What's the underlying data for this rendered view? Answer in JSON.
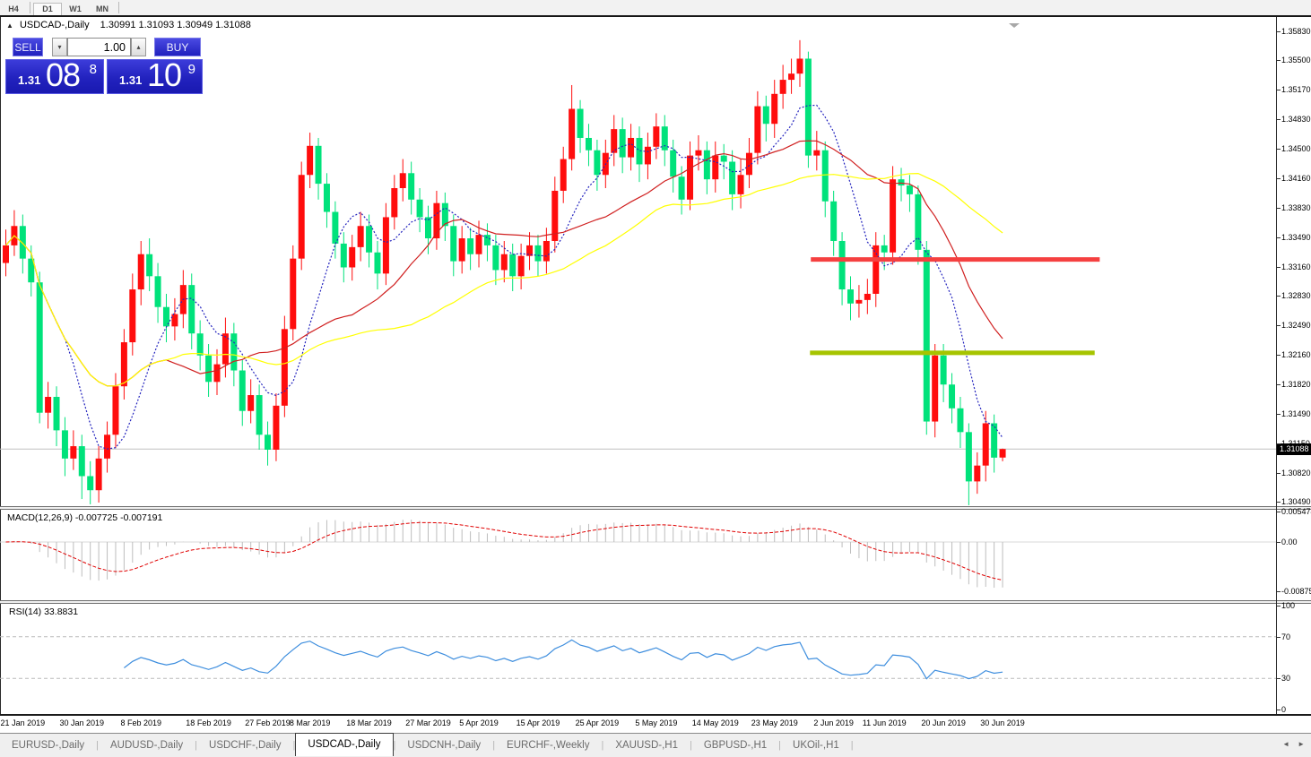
{
  "toolbar": {
    "timeframes": [
      {
        "label": "H4",
        "active": false
      },
      {
        "label": "D1",
        "active": true
      },
      {
        "label": "W1",
        "active": false
      },
      {
        "label": "MN",
        "active": false
      }
    ]
  },
  "chart": {
    "title_symbol": "USDCAD-,Daily",
    "title_ohlc": "1.30991 1.31093 1.30949 1.31088",
    "current_price": "1.31088",
    "trade_panel": {
      "sell_label": "SELL",
      "buy_label": "BUY",
      "volume": "1.00",
      "sell_price_small": "1.31",
      "sell_price_big": "08",
      "sell_price_sup": "8",
      "buy_price_small": "1.31",
      "buy_price_big": "10",
      "buy_price_sup": "9"
    }
  },
  "chart_data": {
    "type": "candlestick",
    "symbol": "USDCAD",
    "period": "Daily",
    "colors": {
      "bull": "#FF0D0D",
      "bear": "#00E27B",
      "macd_hist": "#BDBDBD",
      "macd_signal": "#E00000",
      "rsi_line": "#3E8EDE",
      "level_dash": "#BBBBBB",
      "current_line": "#C0C0C0",
      "zero_line": "#DADADA"
    },
    "candles": [
      [
        1.332,
        1.3358,
        1.3305,
        1.334
      ],
      [
        1.334,
        1.338,
        1.3328,
        1.3362
      ],
      [
        1.3362,
        1.3375,
        1.3308,
        1.3325
      ],
      [
        1.3325,
        1.334,
        1.3282,
        1.3298
      ],
      [
        1.3298,
        1.331,
        1.3138,
        1.315
      ],
      [
        1.315,
        1.3185,
        1.3132,
        1.3168
      ],
      [
        1.3168,
        1.318,
        1.3112,
        1.313
      ],
      [
        1.313,
        1.3145,
        1.3078,
        1.3098
      ],
      [
        1.3098,
        1.313,
        1.3085,
        1.3112
      ],
      [
        1.3112,
        1.3125,
        1.3052,
        1.3078
      ],
      [
        1.3078,
        1.3095,
        1.3046,
        1.3062
      ],
      [
        1.3062,
        1.3112,
        1.3048,
        1.3098
      ],
      [
        1.3098,
        1.314,
        1.3082,
        1.3125
      ],
      [
        1.3125,
        1.3195,
        1.311,
        1.318
      ],
      [
        1.318,
        1.3245,
        1.3165,
        1.323
      ],
      [
        1.323,
        1.3308,
        1.3215,
        1.329
      ],
      [
        1.329,
        1.3345,
        1.3272,
        1.333
      ],
      [
        1.333,
        1.3348,
        1.3288,
        1.3305
      ],
      [
        1.3305,
        1.332,
        1.3252,
        1.327
      ],
      [
        1.327,
        1.3285,
        1.323,
        1.3248
      ],
      [
        1.3248,
        1.328,
        1.3232,
        1.3262
      ],
      [
        1.3262,
        1.3312,
        1.3246,
        1.3295
      ],
      [
        1.3295,
        1.3308,
        1.3222,
        1.324
      ],
      [
        1.324,
        1.3255,
        1.3198,
        1.3215
      ],
      [
        1.3215,
        1.3228,
        1.3168,
        1.3185
      ],
      [
        1.3185,
        1.3222,
        1.317,
        1.3205
      ],
      [
        1.3205,
        1.3258,
        1.319,
        1.324
      ],
      [
        1.324,
        1.3252,
        1.318,
        1.3198
      ],
      [
        1.3198,
        1.321,
        1.3135,
        1.3152
      ],
      [
        1.3152,
        1.3188,
        1.3138,
        1.317
      ],
      [
        1.317,
        1.3182,
        1.3108,
        1.3125
      ],
      [
        1.3125,
        1.314,
        1.309,
        1.3108
      ],
      [
        1.3108,
        1.3172,
        1.3095,
        1.3158
      ],
      [
        1.3158,
        1.326,
        1.3145,
        1.3245
      ],
      [
        1.3245,
        1.334,
        1.3232,
        1.3325
      ],
      [
        1.3325,
        1.3435,
        1.3312,
        1.342
      ],
      [
        1.342,
        1.3468,
        1.3405,
        1.3453
      ],
      [
        1.3453,
        1.3462,
        1.3392,
        1.341
      ],
      [
        1.341,
        1.3422,
        1.336,
        1.3378
      ],
      [
        1.3378,
        1.339,
        1.3325,
        1.3342
      ],
      [
        1.3342,
        1.3355,
        1.3298,
        1.3315
      ],
      [
        1.3315,
        1.3352,
        1.33,
        1.3338
      ],
      [
        1.3338,
        1.3378,
        1.3322,
        1.3362
      ],
      [
        1.3362,
        1.3375,
        1.3315,
        1.3332
      ],
      [
        1.3332,
        1.3345,
        1.329,
        1.3308
      ],
      [
        1.3308,
        1.3388,
        1.3295,
        1.3372
      ],
      [
        1.3372,
        1.342,
        1.3358,
        1.3405
      ],
      [
        1.3405,
        1.3438,
        1.339,
        1.3422
      ],
      [
        1.3422,
        1.3435,
        1.3375,
        1.3392
      ],
      [
        1.3392,
        1.3405,
        1.3355,
        1.3372
      ],
      [
        1.3372,
        1.3385,
        1.333,
        1.3348
      ],
      [
        1.3348,
        1.3402,
        1.3335,
        1.3388
      ],
      [
        1.3388,
        1.34,
        1.3345,
        1.3362
      ],
      [
        1.3362,
        1.3375,
        1.3305,
        1.3322
      ],
      [
        1.3322,
        1.3362,
        1.3308,
        1.3348
      ],
      [
        1.3348,
        1.336,
        1.3312,
        1.333
      ],
      [
        1.333,
        1.3368,
        1.3315,
        1.3352
      ],
      [
        1.3352,
        1.3365,
        1.3322,
        1.334
      ],
      [
        1.334,
        1.3352,
        1.3295,
        1.3312
      ],
      [
        1.3312,
        1.3345,
        1.3298,
        1.333
      ],
      [
        1.333,
        1.3342,
        1.3288,
        1.3305
      ],
      [
        1.3305,
        1.3342,
        1.329,
        1.3328
      ],
      [
        1.3328,
        1.3355,
        1.3312,
        1.334
      ],
      [
        1.334,
        1.3352,
        1.3305,
        1.3322
      ],
      [
        1.3322,
        1.336,
        1.3308,
        1.3345
      ],
      [
        1.3345,
        1.3418,
        1.3332,
        1.3402
      ],
      [
        1.3402,
        1.3452,
        1.3388,
        1.3438
      ],
      [
        1.3438,
        1.3522,
        1.3425,
        1.3495
      ],
      [
        1.3495,
        1.3505,
        1.3445,
        1.3462
      ],
      [
        1.3462,
        1.3478,
        1.343,
        1.3448
      ],
      [
        1.3448,
        1.346,
        1.3402,
        1.342
      ],
      [
        1.342,
        1.346,
        1.3405,
        1.3445
      ],
      [
        1.3445,
        1.3488,
        1.343,
        1.3472
      ],
      [
        1.3472,
        1.3485,
        1.3422,
        1.344
      ],
      [
        1.344,
        1.3478,
        1.3425,
        1.3462
      ],
      [
        1.3462,
        1.3475,
        1.3412,
        1.3432
      ],
      [
        1.3432,
        1.3468,
        1.3415,
        1.3452
      ],
      [
        1.3452,
        1.349,
        1.3438,
        1.3475
      ],
      [
        1.3475,
        1.3488,
        1.343,
        1.3448
      ],
      [
        1.3448,
        1.346,
        1.34,
        1.3418
      ],
      [
        1.3418,
        1.343,
        1.3375,
        1.3392
      ],
      [
        1.3392,
        1.3458,
        1.338,
        1.3442
      ],
      [
        1.3442,
        1.3465,
        1.3425,
        1.3448
      ],
      [
        1.3448,
        1.3458,
        1.3398,
        1.3415
      ],
      [
        1.3415,
        1.3458,
        1.34,
        1.3442
      ],
      [
        1.3442,
        1.3455,
        1.3415,
        1.3435
      ],
      [
        1.3435,
        1.3448,
        1.338,
        1.3398
      ],
      [
        1.3398,
        1.3438,
        1.3382,
        1.342
      ],
      [
        1.342,
        1.3462,
        1.3405,
        1.3445
      ],
      [
        1.3445,
        1.3515,
        1.3432,
        1.3498
      ],
      [
        1.3498,
        1.351,
        1.3458,
        1.3478
      ],
      [
        1.3478,
        1.3528,
        1.3462,
        1.3512
      ],
      [
        1.3512,
        1.3545,
        1.3495,
        1.3528
      ],
      [
        1.3528,
        1.3552,
        1.3512,
        1.3535
      ],
      [
        1.3535,
        1.3573,
        1.352,
        1.3552
      ],
      [
        1.3552,
        1.356,
        1.3428,
        1.3442
      ],
      [
        1.3442,
        1.347,
        1.3425,
        1.3448
      ],
      [
        1.3448,
        1.3458,
        1.3372,
        1.339
      ],
      [
        1.339,
        1.3402,
        1.3328,
        1.3345
      ],
      [
        1.3345,
        1.3355,
        1.3272,
        1.329
      ],
      [
        1.329,
        1.3305,
        1.3255,
        1.3274
      ],
      [
        1.3274,
        1.3295,
        1.3258,
        1.3278
      ],
      [
        1.3278,
        1.3302,
        1.3262,
        1.3285
      ],
      [
        1.3285,
        1.3355,
        1.327,
        1.334
      ],
      [
        1.334,
        1.3352,
        1.3312,
        1.3332
      ],
      [
        1.3332,
        1.343,
        1.3318,
        1.3415
      ],
      [
        1.3415,
        1.3428,
        1.339,
        1.3408
      ],
      [
        1.3408,
        1.342,
        1.3378,
        1.3398
      ],
      [
        1.3398,
        1.3408,
        1.3318,
        1.3335
      ],
      [
        1.3335,
        1.3345,
        1.3125,
        1.314
      ],
      [
        1.314,
        1.3228,
        1.3122,
        1.3215
      ],
      [
        1.3215,
        1.3228,
        1.3162,
        1.3182
      ],
      [
        1.3182,
        1.3195,
        1.3138,
        1.3155
      ],
      [
        1.3155,
        1.3168,
        1.311,
        1.3128
      ],
      [
        1.3128,
        1.3138,
        1.3045,
        1.3072
      ],
      [
        1.3072,
        1.3105,
        1.3058,
        1.309
      ],
      [
        1.309,
        1.3152,
        1.3072,
        1.3138
      ],
      [
        1.3138,
        1.3148,
        1.3082,
        1.3099
      ],
      [
        1.30991,
        1.31093,
        1.30949,
        1.31088
      ]
    ],
    "ma_lines": [
      {
        "period": 8,
        "color": "#2424BE",
        "style": "dashed"
      },
      {
        "period": 20,
        "color": "#D02020",
        "style": "solid"
      },
      {
        "period": 45,
        "color": "#FFFF00",
        "style": "solid"
      }
    ],
    "hlines": [
      {
        "price": 1.3324,
        "color": "#F54040",
        "thickness": 5,
        "start_i": 95.3,
        "end_i": 129.5
      },
      {
        "price": 1.3218,
        "color": "#A6C400",
        "thickness": 5,
        "start_i": 95.2,
        "end_i": 128.9
      }
    ],
    "y_axis": {
      "max": 1.3583,
      "min": 1.3049,
      "ticks": [
        "1.35830",
        "1.35500",
        "1.35170",
        "1.34830",
        "1.34500",
        "1.34160",
        "1.33830",
        "1.33490",
        "1.33160",
        "1.32830",
        "1.32490",
        "1.32160",
        "1.31820",
        "1.31490",
        "1.31150",
        "1.30820",
        "1.30490"
      ]
    },
    "x_axis": {
      "ticks": [
        {
          "label": "21 Jan 2019",
          "i": 2
        },
        {
          "label": "30 Jan 2019",
          "i": 9
        },
        {
          "label": "8 Feb 2019",
          "i": 16
        },
        {
          "label": "18 Feb 2019",
          "i": 24
        },
        {
          "label": "27 Feb 2019",
          "i": 31
        },
        {
          "label": "8 Mar 2019",
          "i": 36
        },
        {
          "label": "18 Mar 2019",
          "i": 43
        },
        {
          "label": "27 Mar 2019",
          "i": 50
        },
        {
          "label": "5 Apr 2019",
          "i": 56
        },
        {
          "label": "15 Apr 2019",
          "i": 63
        },
        {
          "label": "25 Apr 2019",
          "i": 70
        },
        {
          "label": "5 May 2019",
          "i": 77
        },
        {
          "label": "14 May 2019",
          "i": 84
        },
        {
          "label": "23 May 2019",
          "i": 91
        },
        {
          "label": "2 Jun 2019",
          "i": 98
        },
        {
          "label": "11 Jun 2019",
          "i": 104
        },
        {
          "label": "20 Jun 2019",
          "i": 111
        },
        {
          "label": "30 Jun 2019",
          "i": 118
        }
      ]
    },
    "macd": {
      "label_text": "MACD(12,26,9) -0.007725 -0.007191",
      "params": [
        12,
        26,
        9
      ],
      "ticks": [
        {
          "label": "0.005474",
          "value": 0.005474
        },
        {
          "label": "0.00",
          "value": 0
        },
        {
          "label": "-0.008752",
          "value": -0.008752
        }
      ]
    },
    "rsi": {
      "label_text": "RSI(14) 33.8831",
      "period": 14,
      "levels": [
        70,
        30
      ],
      "ticks": [
        {
          "label": "100",
          "value": 100
        },
        {
          "label": "70",
          "value": 70
        },
        {
          "label": "30",
          "value": 30
        },
        {
          "label": "0",
          "value": 0
        }
      ]
    }
  },
  "tabs": {
    "items": [
      {
        "label": "EURUSD-,Daily",
        "active": false
      },
      {
        "label": "AUDUSD-,Daily",
        "active": false
      },
      {
        "label": "USDCHF-,Daily",
        "active": false
      },
      {
        "label": "USDCAD-,Daily",
        "active": true
      },
      {
        "label": "USDCNH-,Daily",
        "active": false
      },
      {
        "label": "EURCHF-,Weekly",
        "active": false
      },
      {
        "label": "XAUUSD-,H1",
        "active": false
      },
      {
        "label": "GBPUSD-,H1",
        "active": false
      },
      {
        "label": "UKOil-,H1",
        "active": false
      }
    ],
    "nav_left": "◄",
    "nav_right": "►"
  }
}
